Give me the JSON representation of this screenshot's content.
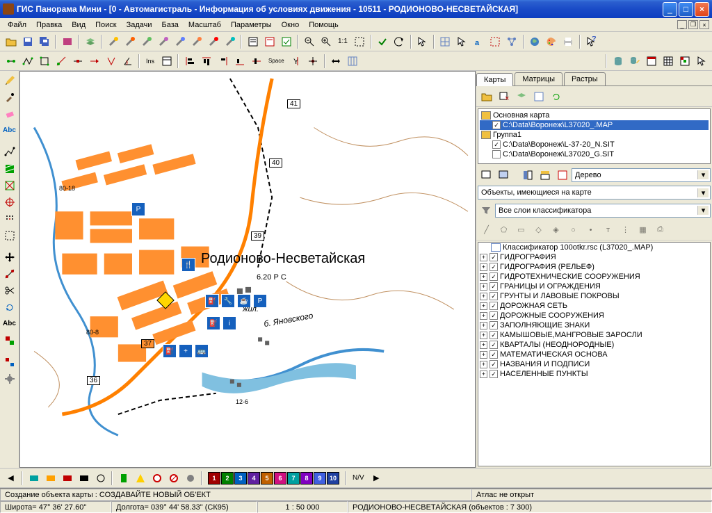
{
  "window": {
    "title": "ГИС Панорама Мини - [0 - Автомагистраль - Информация об условиях движения - 10511 - РОДИОНОВО-НЕСВЕТАЙСКАЯ]"
  },
  "menu": [
    "Файл",
    "Правка",
    "Вид",
    "Поиск",
    "Задачи",
    "База",
    "Масштаб",
    "Параметры",
    "Окно",
    "Помощь"
  ],
  "map": {
    "main_label": "Родионово-Несветайская",
    "river_label": "б. Яновского",
    "dist_label": "6.20 Р С",
    "zhil_label": "жил.",
    "km_marks": [
      "41",
      "40",
      "39",
      "37",
      "36"
    ],
    "small_labels": [
      "80-18",
      "80-8",
      "12-6"
    ]
  },
  "tabs": [
    "Карты",
    "Матрицы",
    "Растры"
  ],
  "tree": {
    "root": "Основная карта",
    "root_path": "C:\\Data\\Воронеж\\L37020_.MAP",
    "group": "Группа1",
    "files": [
      "C:\\Data\\Воронеж\\L-37-20_N.SIT",
      "C:\\Data\\Воронеж\\L37020_G.SIT"
    ]
  },
  "combo_tree": "Дерево",
  "combo_objects": "Объекты, имеющиеся на карте",
  "combo_layers": "Все слои классификатора",
  "classifier": "Классификатор 100otkr.rsc (L37020_.MAP)",
  "layers": [
    "ГИДРОГРАФИЯ",
    "ГИДРОГРАФИЯ (РЕЛЬЕФ)",
    "ГИДРОТЕХНИЧЕСКИЕ СООРУЖЕНИЯ",
    "ГРАНИЦЫ И ОГРАЖДЕНИЯ",
    "ГРУНТЫ И ЛАВОВЫЕ ПОКРОВЫ",
    "ДОРОЖНАЯ СЕТЬ",
    "ДОРОЖНЫЕ СООРУЖЕНИЯ",
    "ЗАПОЛНЯЮЩИЕ ЗНАКИ",
    "КАМЫШОВЫЕ,МАНГРОВЫЕ ЗАРОСЛИ",
    "КВАРТАЛЫ (НЕОДНОРОДНЫЕ)",
    "МАТЕМАТИЧЕСКАЯ ОСНОВА",
    "НАЗВАНИЯ И ПОДПИСИ",
    "НАСЕЛЕННЫЕ ПУНКТЫ"
  ],
  "status": {
    "create": "Создание объекта карты : СОЗДАВАЙТЕ НОВЫЙ ОБ'ЕКТ",
    "atlas": "Атлас не открыт",
    "lat": "Широта= 47° 36' 27.60\"",
    "lon": "Долгота= 039° 44' 58.33\" (СК95)",
    "scale": "1 : 50 000",
    "place": "РОДИОНОВО-НЕСВЕТАЙСКАЯ   (объектов : 7 300)"
  },
  "colors": [
    "#a00000",
    "#008000",
    "#0060c0",
    "#6020a0",
    "#c06000",
    "#d01080",
    "#00a0a0",
    "#8000c0",
    "#4060e0",
    "#2040a0"
  ],
  "toolbar_ratio": "1:1",
  "nv_label": "N/V"
}
